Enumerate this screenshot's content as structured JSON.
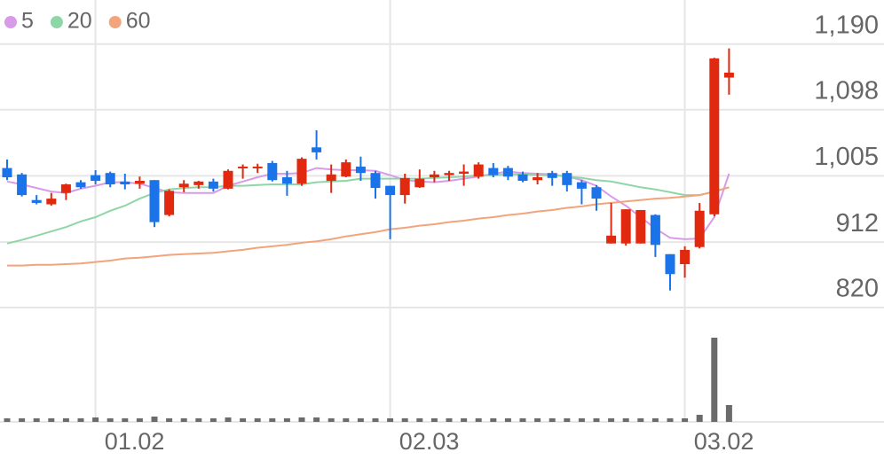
{
  "chart_data": {
    "type": "candlestick",
    "categories": [
      null,
      null,
      null,
      null,
      null,
      null,
      "01.02",
      null,
      null,
      null,
      null,
      null,
      null,
      null,
      null,
      null,
      null,
      null,
      null,
      null,
      null,
      null,
      null,
      null,
      null,
      null,
      "02.03",
      null,
      null,
      null,
      null,
      null,
      null,
      null,
      null,
      null,
      null,
      null,
      null,
      null,
      null,
      null,
      null,
      null,
      null,
      null,
      "03.02",
      null,
      null,
      null
    ],
    "open": [
      1016,
      1007,
      971,
      965,
      981,
      996,
      1006,
      1009,
      997,
      994,
      999,
      950,
      989,
      992,
      997,
      987,
      1017,
      1016,
      1023,
      1003,
      994,
      1045,
      998,
      1004,
      1018,
      1009,
      991,
      978,
      989,
      1003,
      1006,
      1008,
      1004,
      1016,
      1016,
      1007,
      999,
      1009,
      1009,
      996,
      989,
      910,
      910,
      910,
      950,
      895,
      881,
      905,
      951,
      1143
    ],
    "high": [
      1028,
      1009,
      978,
      981,
      994,
      999,
      1013,
      1011,
      1008,
      1004,
      999,
      986,
      999,
      998,
      1001,
      1014,
      1021,
      1022,
      1026,
      1012,
      1031,
      1069,
      1021,
      1028,
      1032,
      1012,
      991,
      1008,
      1014,
      1012,
      1012,
      1021,
      1024,
      1023,
      1019,
      1011,
      1009,
      1012,
      1012,
      999,
      992,
      967,
      958,
      957,
      951,
      895,
      906,
      967,
      1171,
      1184
    ],
    "low": [
      999,
      976,
      965,
      963,
      971,
      987,
      993,
      989,
      986,
      987,
      933,
      948,
      982,
      987,
      983,
      986,
      1001,
      1009,
      997,
      977,
      991,
      1028,
      981,
      1003,
      998,
      973,
      916,
      966,
      988,
      996,
      998,
      991,
      1001,
      1003,
      999,
      996,
      993,
      991,
      983,
      965,
      956,
      910,
      907,
      910,
      891,
      844,
      862,
      903,
      948,
      1119
    ],
    "close": [
      1003,
      978,
      967,
      973,
      993,
      989,
      998,
      993,
      993,
      998,
      940,
      984,
      994,
      997,
      987,
      1012,
      1018,
      1018,
      999,
      994,
      1029,
      1038,
      1007,
      1024,
      1009,
      988,
      978,
      1002,
      1001,
      1007,
      1009,
      1011,
      1021,
      1006,
      1004,
      998,
      1003,
      1002,
      992,
      987,
      973,
      921,
      958,
      957,
      908,
      867,
      901,
      956,
      1170,
      1150
    ],
    "up_color": "#e0290f",
    "down_color": "#1a73e8",
    "moving_averages": [
      {
        "name": "5",
        "color": "#d89be8",
        "values": [
          997,
          993,
          988,
          983,
          981,
          987,
          991,
          996,
          996,
          994,
          988,
          982,
          981,
          981,
          981,
          991,
          997,
          1003,
          1008,
          1008,
          1009,
          1016,
          1014,
          1013,
          1013,
          1012,
          1006,
          999,
          997,
          996,
          998,
          1001,
          1004,
          1008,
          1011,
          1009,
          1008,
          1007,
          1004,
          999,
          991,
          976,
          963,
          947,
          931,
          918,
          916,
          917,
          947,
          1008
        ]
      },
      {
        "name": "20",
        "color": "#8fd6a6",
        "values": [
          910,
          915,
          921,
          927,
          933,
          941,
          947,
          956,
          963,
          973,
          981,
          986,
          988,
          989,
          989,
          991,
          991,
          992,
          993,
          993,
          993,
          996,
          997,
          998,
          1001,
          1001,
          1001,
          1001,
          1001,
          1002,
          1003,
          1004,
          1006,
          1006,
          1007,
          1007,
          1006,
          1006,
          1004,
          1002,
          999,
          997,
          993,
          989,
          986,
          982,
          978,
          978,
          983,
          989
        ]
      },
      {
        "name": "60",
        "color": "#f2a47c",
        "values": [
          879,
          879,
          880,
          880,
          881,
          882,
          884,
          886,
          889,
          890,
          892,
          894,
          895,
          896,
          897,
          899,
          901,
          904,
          906,
          908,
          911,
          913,
          916,
          920,
          923,
          926,
          930,
          932,
          935,
          937,
          940,
          942,
          945,
          947,
          950,
          952,
          955,
          957,
          960,
          962,
          965,
          967,
          969,
          971,
          973,
          974,
          976,
          978,
          983,
          989
        ]
      }
    ],
    "ylim": [
      820,
      1252
    ],
    "yticks": [
      {
        "value": 1190,
        "label": "1,190"
      },
      {
        "value": 1098,
        "label": "1,098"
      },
      {
        "value": 1005,
        "label": "1,005"
      },
      912,
      820
    ],
    "grid": true,
    "legend": "top-left",
    "volume": {
      "color": "#6b6b6b",
      "ylim": [
        0,
        100
      ],
      "values": [
        4,
        4,
        4,
        4,
        4,
        4,
        5,
        4,
        4,
        4,
        6,
        4,
        4,
        4,
        4,
        5,
        4,
        4,
        4,
        4,
        5,
        5,
        4,
        4,
        4,
        4,
        4,
        4,
        4,
        4,
        4,
        4,
        4,
        4,
        4,
        4,
        4,
        4,
        4,
        4,
        4,
        4,
        4,
        4,
        4,
        4,
        4,
        8,
        95,
        19
      ]
    }
  }
}
